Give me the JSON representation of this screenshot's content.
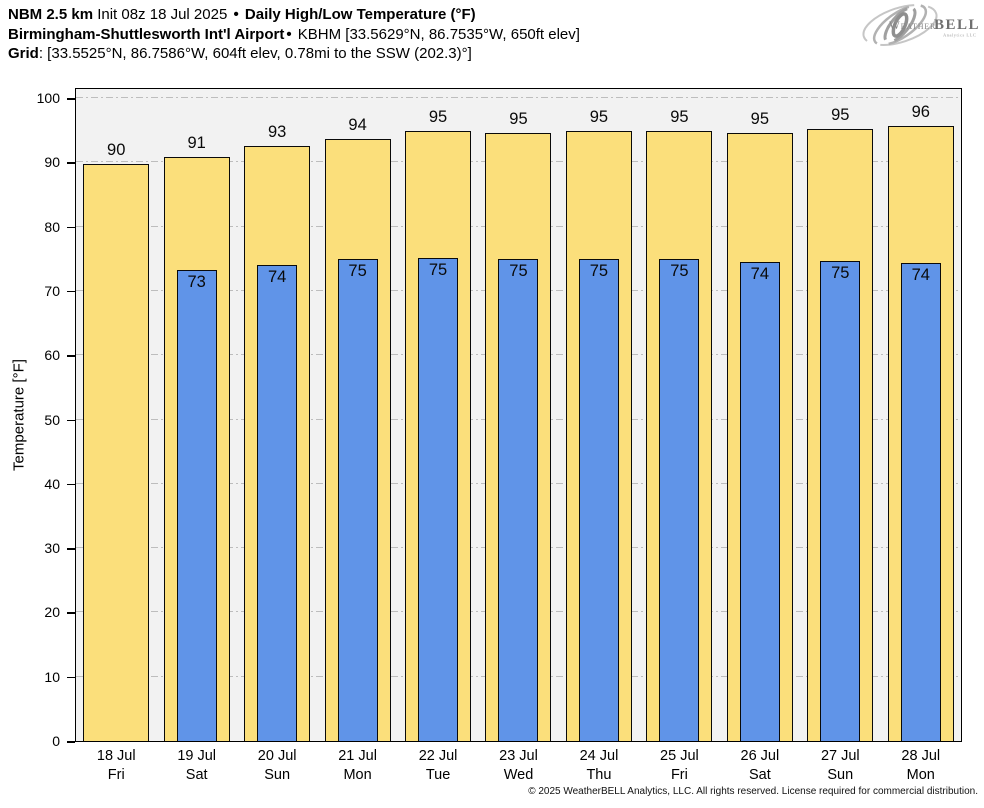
{
  "header": {
    "line1_bold1": "NBM 2.5 km",
    "line1_regular": " Init 08z 18 Jul 2025 ",
    "bullet": "•",
    "line1_bold2": " Daily High/Low Temperature (°F)",
    "line2_bold": "Birmingham-Shuttlesworth Int'l Airport",
    "line2_regular": " KBHM [33.5629°N, 86.7535°W, 650ft elev]",
    "line3_bold": "Grid",
    "line3_regular": ": [33.5525°N, 86.7586°W, 604ft elev, 0.78mi to the SSW (202.3)°]"
  },
  "logo": {
    "weather": "Weather",
    "bell": "BELL",
    "sub": "Analytics LLC"
  },
  "colors": {
    "high_bar": "#fbdf7b",
    "low_bar": "#6094e8",
    "plot_background": "#f2f2f2",
    "gridline": "#bdbdbd",
    "bar_border": "#0a0a0a"
  },
  "chart_data": {
    "type": "bar",
    "title": "Daily High/Low Temperature (°F)",
    "subtitle": "NBM 2.5 km • Init 08z 18 Jul 2025 • Birmingham-Shuttlesworth Int'l Airport (KBHM)",
    "xlabel": "",
    "ylabel": "Temperature [°F]",
    "ylim": [
      0,
      101.5
    ],
    "yticks": [
      0,
      10,
      20,
      30,
      40,
      50,
      60,
      70,
      80,
      90,
      100
    ],
    "grid": "horizontal dash-dot",
    "legend_position": "none",
    "categories": [
      "18 Jul",
      "19 Jul",
      "20 Jul",
      "21 Jul",
      "22 Jul",
      "23 Jul",
      "24 Jul",
      "25 Jul",
      "26 Jul",
      "27 Jul",
      "28 Jul"
    ],
    "weekdays": [
      "Fri",
      "Sat",
      "Sun",
      "Mon",
      "Tue",
      "Wed",
      "Thu",
      "Fri",
      "Sat",
      "Sun",
      "Mon"
    ],
    "series": [
      {
        "name": "Daily High",
        "color": "#fbdf7b",
        "labels": [
          "90",
          "91",
          "93",
          "94",
          "95",
          "95",
          "95",
          "95",
          "95",
          "95",
          "96"
        ],
        "values": [
          89.8,
          90.9,
          92.5,
          93.6,
          94.9,
          94.6,
          94.9,
          94.9,
          94.6,
          95.2,
          95.7
        ]
      },
      {
        "name": "Daily Low",
        "color": "#6094e8",
        "labels": [
          null,
          "73",
          "74",
          "75",
          "75",
          "75",
          "75",
          "75",
          "74",
          "75",
          "74"
        ],
        "values": [
          null,
          73.2,
          74.0,
          75.0,
          75.1,
          75.0,
          74.9,
          74.9,
          74.5,
          74.7,
          74.4
        ]
      }
    ]
  },
  "footer": {
    "copyright": "© 2025 WeatherBELL Analytics, LLC. All rights reserved. License required for commercial distribution."
  }
}
